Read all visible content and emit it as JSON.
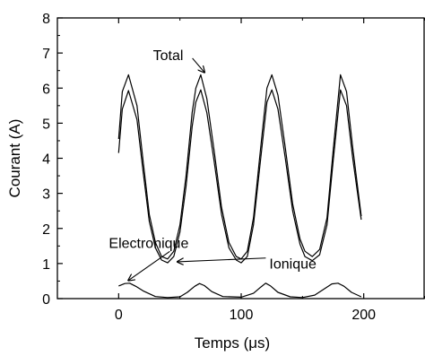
{
  "chart_data": {
    "type": "line",
    "title": "",
    "xlabel": "Temps (μs)",
    "ylabel": "Courant (A)",
    "xlim": [
      -50,
      250
    ],
    "ylim": [
      0,
      8
    ],
    "x_ticks": [
      0,
      100,
      200
    ],
    "y_ticks": [
      0,
      1,
      2,
      3,
      4,
      5,
      6,
      7,
      8
    ],
    "x_tick_labels": [
      "0",
      "100",
      "200"
    ],
    "y_tick_labels": [
      "0",
      "1",
      "2",
      "3",
      "4",
      "5",
      "6",
      "7",
      "8"
    ],
    "grid": false,
    "legend": "none",
    "line_color": "#000000",
    "series": [
      {
        "name": "Total",
        "x": [
          0,
          3,
          8,
          15,
          20,
          25,
          30,
          35,
          40,
          45,
          50,
          55,
          60,
          63,
          67,
          72,
          78,
          84,
          90,
          96,
          100,
          105,
          110,
          115,
          121,
          125,
          130,
          136,
          142,
          148,
          152,
          158,
          164,
          170,
          175,
          181,
          186,
          191,
          198
        ],
        "y": [
          4.55,
          5.9,
          6.38,
          5.5,
          3.9,
          2.4,
          1.6,
          1.2,
          1.13,
          1.35,
          2.1,
          3.5,
          5.3,
          6.0,
          6.38,
          5.7,
          4.2,
          2.6,
          1.6,
          1.2,
          1.13,
          1.35,
          2.3,
          4.0,
          6.0,
          6.38,
          5.8,
          4.3,
          2.7,
          1.7,
          1.35,
          1.2,
          1.4,
          2.3,
          4.2,
          6.38,
          5.9,
          4.3,
          2.35
        ]
      },
      {
        "name": "Ionique",
        "x": [
          0,
          3,
          8,
          15,
          20,
          25,
          30,
          35,
          40,
          45,
          50,
          55,
          60,
          63,
          67,
          72,
          78,
          84,
          90,
          96,
          100,
          105,
          110,
          115,
          121,
          125,
          130,
          136,
          142,
          148,
          152,
          158,
          164,
          170,
          175,
          181,
          186,
          191,
          198
        ],
        "y": [
          4.15,
          5.4,
          5.93,
          5.1,
          3.6,
          2.2,
          1.45,
          1.1,
          1.02,
          1.2,
          1.9,
          3.2,
          4.9,
          5.6,
          5.95,
          5.3,
          3.9,
          2.4,
          1.45,
          1.1,
          1.02,
          1.2,
          2.1,
          3.7,
          5.6,
          5.95,
          5.4,
          4.0,
          2.5,
          1.55,
          1.2,
          1.08,
          1.25,
          2.1,
          3.9,
          5.95,
          5.5,
          4.0,
          2.25
        ]
      },
      {
        "name": "Electronique",
        "x": [
          0,
          5,
          9,
          14,
          20,
          30,
          40,
          50,
          56,
          62,
          66,
          70,
          76,
          85,
          100,
          110,
          116,
          120,
          124,
          130,
          140,
          150,
          160,
          168,
          174,
          179,
          184,
          190,
          198
        ],
        "y": [
          0.36,
          0.43,
          0.44,
          0.35,
          0.22,
          0.06,
          0.03,
          0.05,
          0.18,
          0.35,
          0.43,
          0.37,
          0.2,
          0.06,
          0.04,
          0.15,
          0.33,
          0.44,
          0.36,
          0.18,
          0.05,
          0.03,
          0.1,
          0.28,
          0.42,
          0.44,
          0.35,
          0.18,
          0.05
        ]
      }
    ],
    "annotations": [
      {
        "text": "Total",
        "x": 28,
        "y": 6.8,
        "target_x": 70,
        "target_y": 6.45
      },
      {
        "text": "Ionique",
        "x": 123,
        "y": 0.85,
        "target_x": 48,
        "target_y": 1.05
      },
      {
        "text": "Electronique",
        "x": -8,
        "y": 1.45,
        "target_x": 8,
        "target_y": 0.52
      }
    ]
  }
}
